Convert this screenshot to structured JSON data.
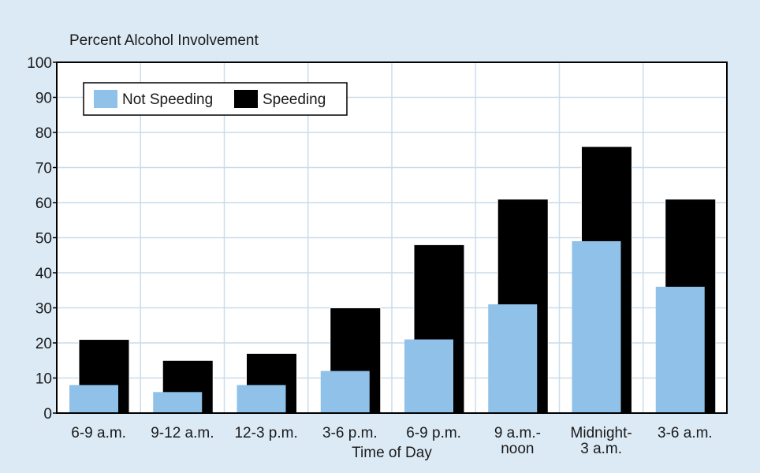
{
  "chart_data": {
    "type": "bar",
    "y_label": "Percent Alcohol Involvement",
    "x_label": "Time of Day",
    "categories": [
      "6-9 a.m.",
      "9-12 a.m.",
      "12-3 p.m.",
      "3-6 p.m.",
      "6-9 p.m.",
      "9 a.m.-\nnoon",
      "Midnight-\n3 a.m.",
      "3-6 a.m."
    ],
    "series": [
      {
        "name": "Not Speeding",
        "color": "#8fc1e9",
        "values": [
          8,
          6,
          8,
          12,
          21,
          31,
          49,
          36
        ]
      },
      {
        "name": "Speeding",
        "color": "#000000",
        "values": [
          21,
          15,
          17,
          30,
          48,
          61,
          76,
          61
        ]
      }
    ],
    "ylim": [
      0,
      100
    ],
    "yticks": [
      0,
      10,
      20,
      30,
      40,
      50,
      60,
      70,
      80,
      90,
      100
    ],
    "grid": true,
    "legend": "top-left"
  }
}
